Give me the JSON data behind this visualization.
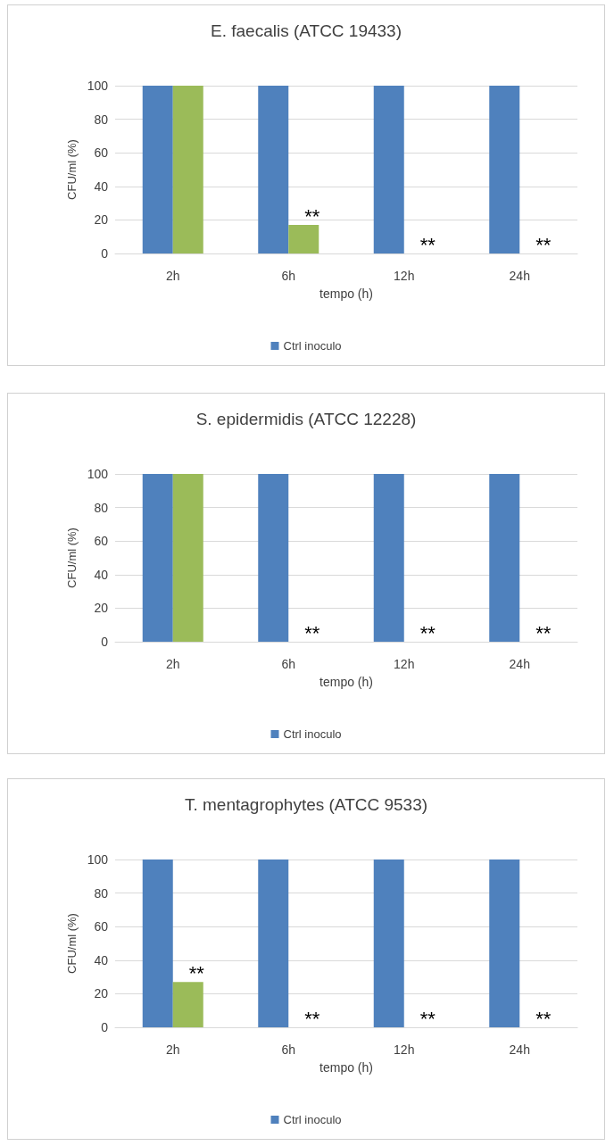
{
  "chart_data": [
    {
      "type": "bar",
      "title": "E. faecalis (ATCC 19433)",
      "xlabel": "tempo (h)",
      "ylabel": "CFU/ml (%)",
      "categories": [
        "2h",
        "6h",
        "12h",
        "24h"
      ],
      "series": [
        {
          "name": "Ctrl inoculo",
          "color": "#4f81bd",
          "values": [
            100,
            100,
            100,
            100
          ]
        },
        {
          "color": "#9bbb59",
          "values": [
            100,
            17,
            0,
            0
          ]
        }
      ],
      "ylim": [
        0,
        100
      ],
      "yticks": [
        0,
        20,
        40,
        60,
        80,
        100
      ],
      "grid": "y",
      "legend": "bottom",
      "annotations": [
        {
          "text": "**",
          "x": "6h",
          "y": 17
        },
        {
          "text": "**",
          "x": "12h",
          "y": 0
        },
        {
          "text": "**",
          "x": "24h",
          "y": 0
        }
      ]
    },
    {
      "type": "bar",
      "title": "S. epidermidis (ATCC 12228)",
      "xlabel": "tempo (h)",
      "ylabel": "CFU/ml (%)",
      "categories": [
        "2h",
        "6h",
        "12h",
        "24h"
      ],
      "series": [
        {
          "name": "Ctrl inoculo",
          "color": "#4f81bd",
          "values": [
            100,
            100,
            100,
            100
          ]
        },
        {
          "color": "#9bbb59",
          "values": [
            100,
            0,
            0,
            0
          ]
        }
      ],
      "ylim": [
        0,
        100
      ],
      "yticks": [
        0,
        20,
        40,
        60,
        80,
        100
      ],
      "grid": "y",
      "legend": "bottom",
      "annotations": [
        {
          "text": "**",
          "x": "6h",
          "y": 0
        },
        {
          "text": "**",
          "x": "12h",
          "y": 0
        },
        {
          "text": "**",
          "x": "24h",
          "y": 0
        }
      ]
    },
    {
      "type": "bar",
      "title": "T. mentagrophytes (ATCC 9533)",
      "xlabel": "tempo (h)",
      "ylabel": "CFU/ml (%)",
      "categories": [
        "2h",
        "6h",
        "12h",
        "24h"
      ],
      "series": [
        {
          "name": "Ctrl inoculo",
          "color": "#4f81bd",
          "values": [
            100,
            100,
            100,
            100
          ]
        },
        {
          "color": "#9bbb59",
          "values": [
            27,
            0,
            0,
            0
          ]
        }
      ],
      "ylim": [
        0,
        100
      ],
      "yticks": [
        0,
        20,
        40,
        60,
        80,
        100
      ],
      "grid": "y",
      "legend": "bottom",
      "annotations": [
        {
          "text": "**",
          "x": "2h",
          "y": 27
        },
        {
          "text": "**",
          "x": "6h",
          "y": 0
        },
        {
          "text": "**",
          "x": "12h",
          "y": 0
        },
        {
          "text": "**",
          "x": "24h",
          "y": 0
        }
      ]
    }
  ]
}
